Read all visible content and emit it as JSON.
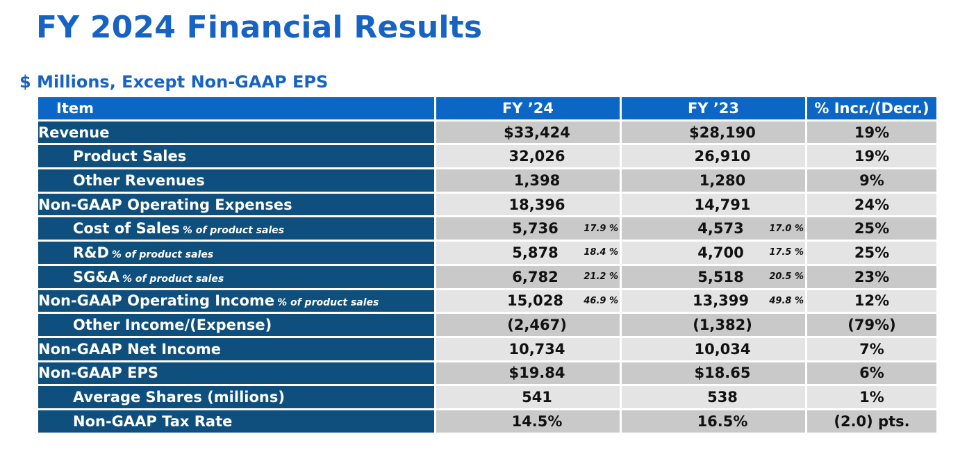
{
  "title": "FY 2024 Financial Results",
  "subtitle": "$ Millions, Except Non-GAAP EPS",
  "table": {
    "headers": [
      "Item",
      "FY ’24",
      "FY ’23",
      "% Incr./(Decr.)"
    ],
    "rows": [
      {
        "item": "Revenue",
        "note": "",
        "fy24": "$33,424",
        "fy24_pct": "",
        "fy23": "$28,190",
        "fy23_pct": "",
        "change": "19%"
      },
      {
        "item": "Product Sales",
        "note": "",
        "fy24": "32,026",
        "fy24_pct": "",
        "fy23": "26,910",
        "fy23_pct": "",
        "change": "19%"
      },
      {
        "item": "Other Revenues",
        "note": "",
        "fy24": "1,398",
        "fy24_pct": "",
        "fy23": "1,280",
        "fy23_pct": "",
        "change": "9%"
      },
      {
        "item": "Non-GAAP Operating Expenses",
        "note": "",
        "fy24": "18,396",
        "fy24_pct": "",
        "fy23": "14,791",
        "fy23_pct": "",
        "change": "24%"
      },
      {
        "item": "Cost of Sales",
        "note": "% of product sales",
        "fy24": "5,736",
        "fy24_pct": "17.9 %",
        "fy23": "4,573",
        "fy23_pct": "17.0 %",
        "change": "25%"
      },
      {
        "item": "R&D",
        "note": "% of product sales",
        "fy24": "5,878",
        "fy24_pct": "18.4 %",
        "fy23": "4,700",
        "fy23_pct": "17.5 %",
        "change": "25%"
      },
      {
        "item": "SG&A",
        "note": "% of product sales",
        "fy24": "6,782",
        "fy24_pct": "21.2 %",
        "fy23": "5,518",
        "fy23_pct": "20.5 %",
        "change": "23%"
      },
      {
        "item": "Non-GAAP Operating Income",
        "note": "% of product sales",
        "fy24": "15,028",
        "fy24_pct": "46.9 %",
        "fy23": "13,399",
        "fy23_pct": "49.8 %",
        "change": "12%"
      },
      {
        "item": "Other Income/(Expense)",
        "note": "",
        "fy24": "(2,467)",
        "fy24_pct": "",
        "fy23": "(1,382)",
        "fy23_pct": "",
        "change": "(79%)"
      },
      {
        "item": "Non-GAAP Net Income",
        "note": "",
        "fy24": "10,734",
        "fy24_pct": "",
        "fy23": "10,034",
        "fy23_pct": "",
        "change": "7%"
      },
      {
        "item": "Non-GAAP EPS",
        "note": "",
        "fy24": "$19.84",
        "fy24_pct": "",
        "fy23": "$18.65",
        "fy23_pct": "",
        "change": "6%"
      },
      {
        "item": "Average Shares (millions)",
        "note": "",
        "fy24": "541",
        "fy24_pct": "",
        "fy23": "538",
        "fy23_pct": "",
        "change": "1%"
      },
      {
        "item": "Non-GAAP Tax Rate",
        "note": "",
        "fy24": "14.5%",
        "fy24_pct": "",
        "fy23": "16.5%",
        "fy23_pct": "",
        "change": "(2.0) pts."
      }
    ]
  },
  "colors": {
    "title": "#1763c4",
    "header_bg": "#0b66c6",
    "item_bg": "#0e4f7d",
    "row_dark": "#c9c9c9",
    "row_light": "#e4e4e4"
  }
}
